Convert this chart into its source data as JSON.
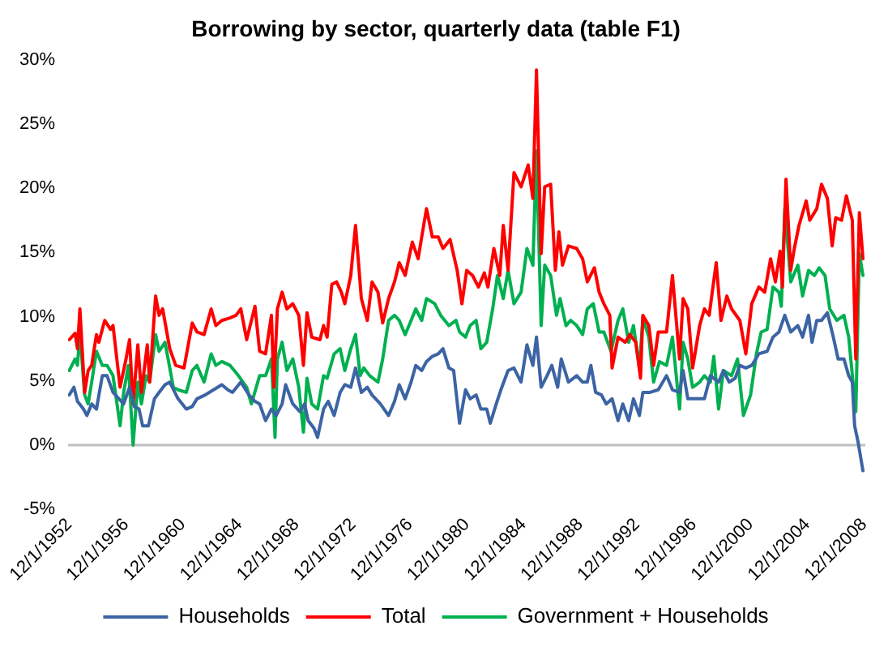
{
  "chart_data": {
    "type": "line",
    "title": "Borrowing by sector, quarterly data (table F1)",
    "xlim": [
      "1952-11",
      "2009-01"
    ],
    "xticks": [
      {
        "value": "1952-12-01",
        "label": "12/1/1952"
      },
      {
        "value": "1956-12-01",
        "label": "12/1/1956"
      },
      {
        "value": "1960-12-01",
        "label": "12/1/1960"
      },
      {
        "value": "1964-12-01",
        "label": "12/1/1964"
      },
      {
        "value": "1968-12-01",
        "label": "12/1/1968"
      },
      {
        "value": "1972-12-01",
        "label": "12/1/1972"
      },
      {
        "value": "1976-12-01",
        "label": "12/1/1976"
      },
      {
        "value": "1980-12-01",
        "label": "12/1/1980"
      },
      {
        "value": "1984-12-01",
        "label": "12/1/1984"
      },
      {
        "value": "1988-12-01",
        "label": "12/1/1988"
      },
      {
        "value": "1992-12-01",
        "label": "12/1/1992"
      },
      {
        "value": "1996-12-01",
        "label": "12/1/1996"
      },
      {
        "value": "2000-12-01",
        "label": "12/1/2000"
      },
      {
        "value": "2004-12-01",
        "label": "12/1/2004"
      },
      {
        "value": "2008-12-01",
        "label": "12/1/2008"
      }
    ],
    "ylim": [
      -5,
      30
    ],
    "yticks": [
      {
        "value": -5,
        "label": "-5%"
      },
      {
        "value": 0,
        "label": "0%"
      },
      {
        "value": 5,
        "label": "5%"
      },
      {
        "value": 10,
        "label": "10%"
      },
      {
        "value": 15,
        "label": "15%"
      },
      {
        "value": 20,
        "label": "20%"
      },
      {
        "value": 25,
        "label": "25%"
      },
      {
        "value": 30,
        "label": "30%"
      }
    ],
    "ref_lines": [
      {
        "axis": "y",
        "value": 0,
        "color": "#bfbfbf"
      }
    ],
    "grid": false,
    "legend": "bottom",
    "marker": "none",
    "line_style": "solid",
    "series": [
      {
        "name": "Households",
        "color": "#3c64a4",
        "x": [
          "1952-12",
          "1953-04",
          "1953-07",
          "1953-12",
          "1954-03",
          "1954-07",
          "1954-11",
          "1955-04",
          "1955-08",
          "1956-01",
          "1956-06",
          "1956-10",
          "1957-03",
          "1957-07",
          "1957-11",
          "1958-02",
          "1958-07",
          "1958-12",
          "1959-04",
          "1959-09",
          "1960-01",
          "1960-08",
          "1961-03",
          "1961-08",
          "1961-12",
          "1962-07",
          "1963-02",
          "1963-09",
          "1964-02",
          "1964-06",
          "1965-01",
          "1965-08",
          "1966-01",
          "1966-05",
          "1966-10",
          "1967-03",
          "1967-07",
          "1967-12",
          "1968-03",
          "1968-09",
          "1969-03",
          "1969-07",
          "1969-10",
          "1970-03",
          "1970-06",
          "1970-11",
          "1971-03",
          "1971-08",
          "1972-01",
          "1972-05",
          "1972-10",
          "1973-02",
          "1973-07",
          "1973-12",
          "1974-04",
          "1974-11",
          "1975-06",
          "1975-11",
          "1976-03",
          "1976-08",
          "1977-01",
          "1977-05",
          "1977-10",
          "1978-02",
          "1978-07",
          "1978-12",
          "1979-04",
          "1979-09",
          "1980-01",
          "1980-06",
          "1980-11",
          "1981-03",
          "1981-08",
          "1981-12",
          "1982-05",
          "1982-08",
          "1983-01",
          "1983-05",
          "1983-11",
          "1984-04",
          "1984-10",
          "1985-03",
          "1985-08",
          "1985-11",
          "1986-03",
          "1986-08",
          "1986-12",
          "1987-05",
          "1987-08",
          "1988-02",
          "1988-09",
          "1989-02",
          "1989-06",
          "1989-09",
          "1990-01",
          "1990-06",
          "1990-10",
          "1991-03",
          "1991-08",
          "1991-12",
          "1992-05",
          "1992-09",
          "1993-02",
          "1993-05",
          "1993-11",
          "1994-06",
          "1995-01",
          "1995-06",
          "1995-12",
          "1996-03",
          "1996-07",
          "1997-02",
          "1997-09",
          "1998-02",
          "1998-09",
          "1999-01",
          "1999-06",
          "1999-11",
          "2000-03",
          "2000-08",
          "2001-01",
          "2001-07",
          "2002-02",
          "2002-07",
          "2002-12",
          "2003-05",
          "2003-10",
          "2004-04",
          "2004-08",
          "2005-01",
          "2005-04",
          "2005-08",
          "2005-12",
          "2006-05",
          "2006-10",
          "2007-02",
          "2007-07",
          "2007-11",
          "2008-02",
          "2008-04",
          "2008-07",
          "2008-11"
        ],
        "values": [
          3.9,
          4.5,
          3.4,
          2.8,
          2.3,
          3.2,
          2.8,
          5.4,
          5.4,
          4.1,
          3.6,
          3.2,
          4.5,
          3.0,
          2.8,
          1.5,
          1.5,
          3.6,
          4.1,
          4.7,
          4.9,
          3.6,
          2.8,
          3.0,
          3.6,
          3.9,
          4.3,
          4.7,
          4.3,
          4.1,
          4.9,
          3.9,
          3.4,
          3.2,
          1.9,
          2.8,
          2.3,
          3.2,
          4.7,
          3.2,
          2.6,
          3.2,
          1.9,
          1.3,
          0.6,
          2.8,
          3.4,
          2.3,
          4.1,
          4.7,
          4.5,
          6.0,
          4.1,
          4.5,
          3.9,
          3.2,
          2.3,
          3.4,
          4.7,
          3.6,
          4.9,
          6.2,
          5.8,
          6.5,
          6.9,
          7.1,
          7.5,
          6.0,
          5.8,
          1.7,
          4.3,
          3.6,
          3.9,
          2.8,
          2.8,
          1.7,
          3.2,
          4.3,
          5.8,
          6.0,
          4.9,
          7.8,
          6.2,
          8.4,
          4.5,
          5.4,
          6.2,
          4.5,
          6.7,
          4.9,
          5.4,
          4.9,
          4.9,
          6.2,
          4.1,
          3.9,
          3.2,
          3.6,
          1.9,
          3.2,
          1.9,
          3.6,
          2.3,
          4.1,
          4.1,
          4.3,
          5.4,
          4.3,
          4.1,
          5.8,
          3.6,
          3.6,
          3.6,
          5.4,
          4.9,
          5.8,
          4.9,
          5.2,
          6.2,
          6.0,
          6.2,
          7.1,
          7.3,
          8.4,
          8.8,
          10.1,
          8.8,
          9.3,
          8.4,
          10.1,
          8.0,
          9.7,
          9.7,
          10.3,
          8.4,
          6.7,
          6.7,
          5.4,
          4.9,
          1.5,
          0.2,
          -2.0
        ]
      },
      {
        "name": "Total",
        "color": "#ff0000",
        "x": [
          "1952-12",
          "1953-05",
          "1953-07",
          "1953-09",
          "1954-01",
          "1954-04",
          "1954-07",
          "1954-11",
          "1955-01",
          "1955-06",
          "1955-11",
          "1956-01",
          "1956-07",
          "1956-12",
          "1957-03",
          "1957-06",
          "1957-10",
          "1958-01",
          "1958-06",
          "1958-08",
          "1959-01",
          "1959-04",
          "1959-07",
          "1960-01",
          "1960-06",
          "1961-01",
          "1961-08",
          "1961-12",
          "1962-06",
          "1962-12",
          "1963-04",
          "1963-09",
          "1964-04",
          "1964-09",
          "1965-01",
          "1965-06",
          "1966-01",
          "1966-05",
          "1966-10",
          "1967-03",
          "1967-05",
          "1967-08",
          "1967-12",
          "1968-04",
          "1968-09",
          "1969-02",
          "1969-06",
          "1969-09",
          "1970-01",
          "1970-08",
          "1970-11",
          "1971-02",
          "1971-06",
          "1971-10",
          "1972-02",
          "1972-05",
          "1972-10",
          "1973-02",
          "1973-07",
          "1973-12",
          "1974-04",
          "1974-09",
          "1975-01",
          "1975-06",
          "1975-11",
          "1976-03",
          "1976-08",
          "1977-02",
          "1977-07",
          "1977-10",
          "1978-02",
          "1978-07",
          "1978-12",
          "1979-04",
          "1979-10",
          "1980-04",
          "1980-08",
          "1980-12",
          "1981-05",
          "1981-10",
          "1982-03",
          "1982-06",
          "1982-11",
          "1983-04",
          "1983-07",
          "1983-11",
          "1984-04",
          "1984-10",
          "1985-04",
          "1985-08",
          "1985-11",
          "1986-03",
          "1986-06",
          "1986-11",
          "1987-03",
          "1987-06",
          "1987-09",
          "1988-02",
          "1988-09",
          "1989-02",
          "1989-06",
          "1989-12",
          "1990-04",
          "1990-08",
          "1991-01",
          "1991-03",
          "1991-08",
          "1992-02",
          "1992-06",
          "1992-11",
          "1993-03",
          "1993-05",
          "1993-10",
          "1994-02",
          "1994-06",
          "1995-01",
          "1995-06",
          "1995-12",
          "1996-03",
          "1996-07",
          "1996-11",
          "1997-05",
          "1997-09",
          "1998-01",
          "1998-07",
          "1998-11",
          "1999-04",
          "1999-08",
          "2000-03",
          "2000-08",
          "2001-01",
          "2001-07",
          "2001-12",
          "2002-05",
          "2002-09",
          "2003-01",
          "2003-03",
          "2003-06",
          "2003-10",
          "2004-01",
          "2004-05",
          "2004-11",
          "2005-02",
          "2005-08",
          "2005-12",
          "2006-05",
          "2006-09",
          "2006-12",
          "2007-05",
          "2007-09",
          "2008-02",
          "2008-05",
          "2008-08",
          "2008-11"
        ],
        "values": [
          8.2,
          8.7,
          7.5,
          10.6,
          4.1,
          5.8,
          6.2,
          8.6,
          8.0,
          9.7,
          9.0,
          9.3,
          4.5,
          6.7,
          8.2,
          3.2,
          7.8,
          4.1,
          7.8,
          4.9,
          11.6,
          10.1,
          10.6,
          7.5,
          6.2,
          6.0,
          9.5,
          8.8,
          8.6,
          10.6,
          9.3,
          9.7,
          9.9,
          10.1,
          10.6,
          8.2,
          10.8,
          7.3,
          7.1,
          10.1,
          4.5,
          10.6,
          11.9,
          10.6,
          11.0,
          10.1,
          6.2,
          10.3,
          8.4,
          8.2,
          9.3,
          8.4,
          12.5,
          12.7,
          11.9,
          11.0,
          13.2,
          17.1,
          11.4,
          9.7,
          12.7,
          11.9,
          9.5,
          11.4,
          12.7,
          14.2,
          13.2,
          15.8,
          14.5,
          16.2,
          18.4,
          16.2,
          16.2,
          15.3,
          16.0,
          13.6,
          11.0,
          13.6,
          13.2,
          12.3,
          13.4,
          12.3,
          15.3,
          13.2,
          17.1,
          13.6,
          21.2,
          20.1,
          21.8,
          19.2,
          29.2,
          14.9,
          20.1,
          20.3,
          13.6,
          16.6,
          14.0,
          15.5,
          15.3,
          14.5,
          12.7,
          13.8,
          11.9,
          11.0,
          10.1,
          6.0,
          8.4,
          8.0,
          8.6,
          8.0,
          5.2,
          10.1,
          9.3,
          6.2,
          8.8,
          8.8,
          13.2,
          6.7,
          11.4,
          10.6,
          6.0,
          9.3,
          10.6,
          10.1,
          14.2,
          9.7,
          11.6,
          10.6,
          9.7,
          7.1,
          11.0,
          12.3,
          11.9,
          14.5,
          12.7,
          15.1,
          12.3,
          20.7,
          13.6,
          15.3,
          17.1,
          19.0,
          17.5,
          18.4,
          20.3,
          19.2,
          15.5,
          17.7,
          17.5,
          19.4,
          17.5,
          6.7,
          18.1,
          14.5
        ]
      },
      {
        "name": "Government + Households",
        "color": "#00b050",
        "x": [
          "1952-12",
          "1953-05",
          "1953-07",
          "1953-09",
          "1954-01",
          "1954-04",
          "1954-07",
          "1954-11",
          "1955-04",
          "1955-08",
          "1956-01",
          "1956-07",
          "1956-10",
          "1957-02",
          "1957-06",
          "1957-10",
          "1958-01",
          "1958-05",
          "1958-08",
          "1959-01",
          "1959-04",
          "1959-09",
          "1960-04",
          "1960-08",
          "1961-03",
          "1961-08",
          "1961-12",
          "1962-06",
          "1962-12",
          "1963-04",
          "1963-09",
          "1964-04",
          "1964-11",
          "1965-06",
          "1965-10",
          "1966-05",
          "1966-10",
          "1967-03",
          "1967-06",
          "1967-08",
          "1967-12",
          "1968-04",
          "1968-09",
          "1969-02",
          "1969-06",
          "1969-09",
          "1970-01",
          "1970-06",
          "1970-11",
          "1971-02",
          "1971-08",
          "1972-01",
          "1972-05",
          "1972-10",
          "1973-02",
          "1973-06",
          "1973-09",
          "1974-02",
          "1974-09",
          "1975-01",
          "1975-06",
          "1975-11",
          "1976-03",
          "1976-08",
          "1977-01",
          "1977-05",
          "1977-10",
          "1978-02",
          "1978-09",
          "1979-02",
          "1979-09",
          "1980-03",
          "1980-06",
          "1980-11",
          "1981-03",
          "1981-08",
          "1981-12",
          "1982-05",
          "1982-10",
          "1983-02",
          "1983-07",
          "1983-11",
          "1984-04",
          "1984-10",
          "1985-03",
          "1985-08",
          "1985-11",
          "1986-03",
          "1986-06",
          "1986-11",
          "1987-04",
          "1987-07",
          "1987-12",
          "1988-04",
          "1988-09",
          "1989-02",
          "1989-06",
          "1989-11",
          "1990-04",
          "1990-08",
          "1991-02",
          "1991-08",
          "1991-12",
          "1992-05",
          "1992-09",
          "1993-02",
          "1993-05",
          "1993-10",
          "1994-02",
          "1994-07",
          "1995-01",
          "1995-06",
          "1995-12",
          "1996-03",
          "1996-07",
          "1996-11",
          "1997-05",
          "1997-09",
          "1998-02",
          "1998-05",
          "1998-09",
          "1999-01",
          "1999-08",
          "2000-01",
          "2000-06",
          "2000-12",
          "2001-05",
          "2001-09",
          "2002-02",
          "2002-07",
          "2002-12",
          "2003-02",
          "2003-05",
          "2003-10",
          "2004-04",
          "2004-08",
          "2005-01",
          "2005-06",
          "2005-10",
          "2006-03",
          "2006-07",
          "2007-01",
          "2007-07",
          "2007-11",
          "2008-05",
          "2008-08",
          "2008-11"
        ],
        "values": [
          5.8,
          6.7,
          6.2,
          8.8,
          3.9,
          3.2,
          4.9,
          7.3,
          6.2,
          6.2,
          5.4,
          1.5,
          4.1,
          6.2,
          0.0,
          4.9,
          3.2,
          5.4,
          4.9,
          8.6,
          7.3,
          8.0,
          4.5,
          4.3,
          4.1,
          5.8,
          6.2,
          4.9,
          7.1,
          6.2,
          6.5,
          6.2,
          5.4,
          4.5,
          3.2,
          5.4,
          5.4,
          6.7,
          0.6,
          6.7,
          8.0,
          5.8,
          6.7,
          4.5,
          1.0,
          5.2,
          3.2,
          2.8,
          5.4,
          5.2,
          7.1,
          7.5,
          5.8,
          7.5,
          8.6,
          5.4,
          6.0,
          5.4,
          4.9,
          6.7,
          9.7,
          10.1,
          9.7,
          8.6,
          9.7,
          10.6,
          9.7,
          11.4,
          11.0,
          10.1,
          9.3,
          9.7,
          8.8,
          8.4,
          9.3,
          9.7,
          7.5,
          8.0,
          10.6,
          13.2,
          11.4,
          13.6,
          11.0,
          11.9,
          15.3,
          14.0,
          22.9,
          9.3,
          14.0,
          13.2,
          10.1,
          11.4,
          9.3,
          9.7,
          9.3,
          8.6,
          10.6,
          11.0,
          8.8,
          8.8,
          7.3,
          9.7,
          10.6,
          8.0,
          9.3,
          6.0,
          9.9,
          8.4,
          4.9,
          6.5,
          6.2,
          8.4,
          2.8,
          8.0,
          6.7,
          4.5,
          4.9,
          5.4,
          4.9,
          6.9,
          2.8,
          5.8,
          5.4,
          6.7,
          2.3,
          3.9,
          7.1,
          8.8,
          9.0,
          12.3,
          11.9,
          10.8,
          18.4,
          12.7,
          14.0,
          11.6,
          13.6,
          13.2,
          13.8,
          13.2,
          10.6,
          9.7,
          10.1,
          8.4,
          2.6,
          14.9,
          13.2
        ]
      }
    ]
  }
}
